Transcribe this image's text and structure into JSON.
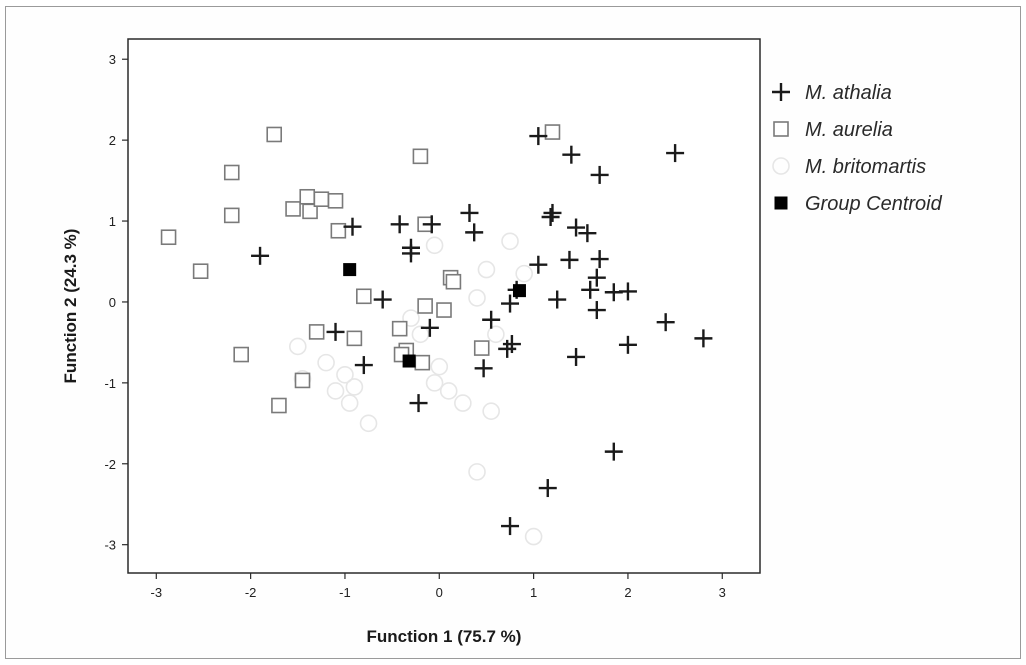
{
  "chart_data": {
    "type": "scatter",
    "xlabel": "Function 1 (75.7 %)",
    "ylabel": "Function 2 (24.3 %)",
    "xlim": [
      -3.3,
      3.4
    ],
    "ylim": [
      -3.35,
      3.25
    ],
    "xticks": [
      -3,
      -2,
      -1,
      0,
      1,
      2,
      3
    ],
    "yticks": [
      3,
      2,
      1,
      0,
      -1,
      -2,
      -3
    ],
    "grid": false,
    "legend_position": "top-right",
    "series": [
      {
        "name": "M. athalia",
        "marker": "plus",
        "color": "#1a1a1a",
        "points": [
          [
            -1.9,
            0.57
          ],
          [
            -0.92,
            0.93
          ],
          [
            -0.42,
            0.96
          ],
          [
            -0.08,
            0.96
          ],
          [
            -0.3,
            0.67
          ],
          [
            -0.3,
            0.6
          ],
          [
            0.32,
            1.1
          ],
          [
            0.37,
            0.86
          ],
          [
            1.05,
            2.05
          ],
          [
            1.4,
            1.82
          ],
          [
            1.7,
            1.57
          ],
          [
            2.5,
            1.84
          ],
          [
            1.2,
            1.1
          ],
          [
            1.18,
            1.05
          ],
          [
            1.45,
            0.92
          ],
          [
            1.57,
            0.85
          ],
          [
            1.38,
            0.52
          ],
          [
            1.05,
            0.46
          ],
          [
            1.7,
            0.53
          ],
          [
            1.67,
            0.3
          ],
          [
            1.6,
            0.15
          ],
          [
            1.85,
            0.12
          ],
          [
            2.0,
            0.13
          ],
          [
            1.25,
            0.03
          ],
          [
            0.82,
            0.15
          ],
          [
            0.75,
            -0.02
          ],
          [
            0.55,
            -0.22
          ],
          [
            1.67,
            -0.1
          ],
          [
            2.4,
            -0.25
          ],
          [
            2.8,
            -0.45
          ],
          [
            2.0,
            -0.53
          ],
          [
            1.45,
            -0.68
          ],
          [
            0.77,
            -0.52
          ],
          [
            0.72,
            -0.58
          ],
          [
            0.47,
            -0.82
          ],
          [
            -0.6,
            0.03
          ],
          [
            -1.1,
            -0.37
          ],
          [
            -0.1,
            -0.32
          ],
          [
            -0.8,
            -0.78
          ],
          [
            -0.22,
            -1.25
          ],
          [
            1.85,
            -1.85
          ],
          [
            1.15,
            -2.3
          ],
          [
            0.75,
            -2.77
          ]
        ]
      },
      {
        "name": "M. aurelia",
        "marker": "open-square",
        "color": "#7a7a7a",
        "points": [
          [
            -2.87,
            0.8
          ],
          [
            -2.53,
            0.38
          ],
          [
            -2.2,
            1.6
          ],
          [
            -2.2,
            1.07
          ],
          [
            -1.75,
            2.07
          ],
          [
            -1.55,
            1.15
          ],
          [
            -1.4,
            1.3
          ],
          [
            -1.37,
            1.12
          ],
          [
            -1.25,
            1.27
          ],
          [
            -1.1,
            1.25
          ],
          [
            -1.07,
            0.88
          ],
          [
            -0.2,
            1.8
          ],
          [
            -0.15,
            0.96
          ],
          [
            1.2,
            2.1
          ],
          [
            0.12,
            0.3
          ],
          [
            0.15,
            0.25
          ],
          [
            0.05,
            -0.1
          ],
          [
            -0.15,
            -0.05
          ],
          [
            -0.8,
            0.07
          ],
          [
            -0.42,
            -0.33
          ],
          [
            -1.3,
            -0.37
          ],
          [
            -0.9,
            -0.45
          ],
          [
            -0.35,
            -0.6
          ],
          [
            -0.4,
            -0.65
          ],
          [
            -0.18,
            -0.75
          ],
          [
            0.45,
            -0.57
          ],
          [
            -2.1,
            -0.65
          ],
          [
            -1.45,
            -0.97
          ],
          [
            -1.7,
            -1.28
          ]
        ]
      },
      {
        "name": "M. britomartis",
        "marker": "open-circle",
        "color": "#e6e6e6",
        "points": [
          [
            -1.5,
            -0.55
          ],
          [
            -1.2,
            -0.75
          ],
          [
            -1.0,
            -0.9
          ],
          [
            -0.9,
            -1.05
          ],
          [
            -1.45,
            -0.95
          ],
          [
            -0.95,
            -1.25
          ],
          [
            -0.75,
            -1.5
          ],
          [
            -1.1,
            -1.1
          ],
          [
            -0.2,
            -0.4
          ],
          [
            0.0,
            -0.8
          ],
          [
            -0.05,
            -1.0
          ],
          [
            0.1,
            -1.1
          ],
          [
            0.25,
            -1.25
          ],
          [
            0.55,
            -1.35
          ],
          [
            -0.3,
            -0.2
          ],
          [
            0.4,
            0.05
          ],
          [
            0.5,
            0.4
          ],
          [
            0.75,
            0.75
          ],
          [
            0.9,
            0.35
          ],
          [
            0.6,
            -0.4
          ],
          [
            0.4,
            -2.1
          ],
          [
            1.0,
            -2.9
          ],
          [
            -0.05,
            0.7
          ]
        ]
      },
      {
        "name": "Group Centroid",
        "marker": "filled-square",
        "color": "#000000",
        "points": [
          [
            -0.95,
            0.4
          ],
          [
            -0.32,
            -0.73
          ],
          [
            0.85,
            0.14
          ]
        ]
      }
    ]
  }
}
